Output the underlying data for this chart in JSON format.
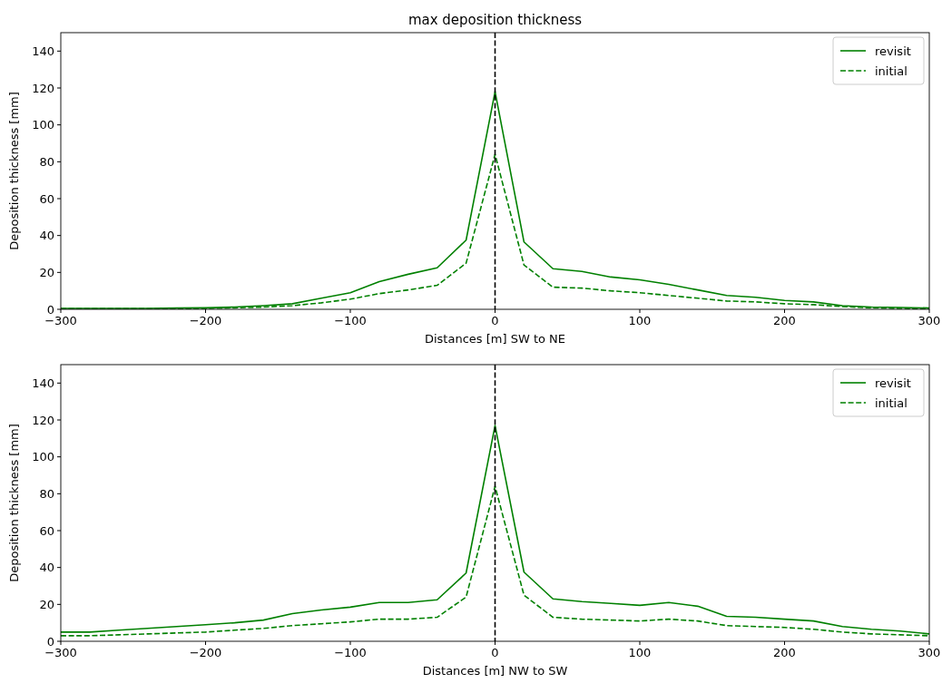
{
  "chart_data": [
    {
      "type": "line",
      "title": "max deposition thickness",
      "xlabel": "Distances [m] SW to NE",
      "ylabel": "Deposition thickness [mm]",
      "x": [
        -300,
        -280,
        -260,
        -240,
        -220,
        -200,
        -180,
        -160,
        -140,
        -120,
        -100,
        -80,
        -60,
        -40,
        -20,
        0,
        20,
        40,
        60,
        80,
        100,
        120,
        140,
        160,
        180,
        200,
        220,
        240,
        260,
        280,
        300
      ],
      "series": [
        {
          "name": "revisit",
          "color": "#008000",
          "line_style": "solid",
          "values": [
            0.5,
            0.5,
            0.5,
            0.5,
            0.7,
            0.8,
            1.2,
            2,
            3,
            6,
            9,
            15,
            19,
            22.5,
            37.5,
            118,
            36.5,
            22,
            20.5,
            17.5,
            16,
            13.5,
            10.5,
            7.5,
            6.5,
            4.8,
            4,
            2,
            1.2,
            1,
            0.7
          ]
        },
        {
          "name": "initial",
          "color": "#008000",
          "line_style": "dashed",
          "values": [
            0.3,
            0.3,
            0.3,
            0.3,
            0.4,
            0.5,
            0.8,
            1.2,
            2,
            3.5,
            5.5,
            8.5,
            10.5,
            13,
            25,
            84,
            24,
            12,
            11.5,
            10,
            9,
            7.5,
            6,
            4.5,
            4,
            3,
            2.5,
            1.5,
            0.8,
            0.5,
            0.3
          ]
        }
      ],
      "xlim": [
        -300,
        300
      ],
      "xticks": [
        {
          "value": -300,
          "label": "−300"
        },
        {
          "value": -200,
          "label": "−200"
        },
        {
          "value": -100,
          "label": "−100"
        },
        0,
        100,
        200,
        300
      ],
      "ylim": [
        0,
        150
      ],
      "yticks": [
        0,
        20,
        40,
        60,
        80,
        100,
        120,
        140
      ],
      "ref_lines": [
        {
          "axis": "x",
          "value": 0,
          "color": "#000000",
          "line_style": "dashed"
        }
      ],
      "legend": "top right",
      "grid": false
    },
    {
      "type": "line",
      "xlabel": "Distances [m] NW to SW",
      "ylabel": "Deposition thickness [mm]",
      "x": [
        -300,
        -280,
        -260,
        -240,
        -220,
        -200,
        -180,
        -160,
        -140,
        -120,
        -100,
        -80,
        -60,
        -40,
        -20,
        0,
        20,
        40,
        60,
        80,
        100,
        120,
        140,
        160,
        180,
        200,
        220,
        240,
        260,
        280,
        300
      ],
      "series": [
        {
          "name": "revisit",
          "color": "#008000",
          "line_style": "solid",
          "values": [
            5,
            5,
            6,
            7,
            8,
            9,
            10,
            11.5,
            15,
            17,
            18.5,
            21,
            21,
            22.5,
            37,
            117,
            37.5,
            23,
            21.5,
            20.5,
            19.5,
            21,
            19,
            13.5,
            13,
            12,
            11,
            8,
            6.5,
            5.5,
            4
          ]
        },
        {
          "name": "initial",
          "color": "#008000",
          "line_style": "dashed",
          "values": [
            3,
            3,
            3.5,
            4,
            4.5,
            5,
            6,
            7,
            8.5,
            9.5,
            10.5,
            12,
            12,
            13,
            24,
            84,
            25,
            13,
            12,
            11.5,
            11,
            12,
            11,
            8.5,
            8,
            7.5,
            6.5,
            5,
            4,
            3.5,
            3
          ]
        }
      ],
      "xlim": [
        -300,
        300
      ],
      "xticks": [
        {
          "value": -300,
          "label": "−300"
        },
        {
          "value": -200,
          "label": "−200"
        },
        {
          "value": -100,
          "label": "−100"
        },
        0,
        100,
        200,
        300
      ],
      "ylim": [
        0,
        150
      ],
      "yticks": [
        0,
        20,
        40,
        60,
        80,
        100,
        120,
        140
      ],
      "ref_lines": [
        {
          "axis": "x",
          "value": 0,
          "color": "#000000",
          "line_style": "dashed"
        }
      ],
      "legend": "top right",
      "grid": false
    }
  ]
}
